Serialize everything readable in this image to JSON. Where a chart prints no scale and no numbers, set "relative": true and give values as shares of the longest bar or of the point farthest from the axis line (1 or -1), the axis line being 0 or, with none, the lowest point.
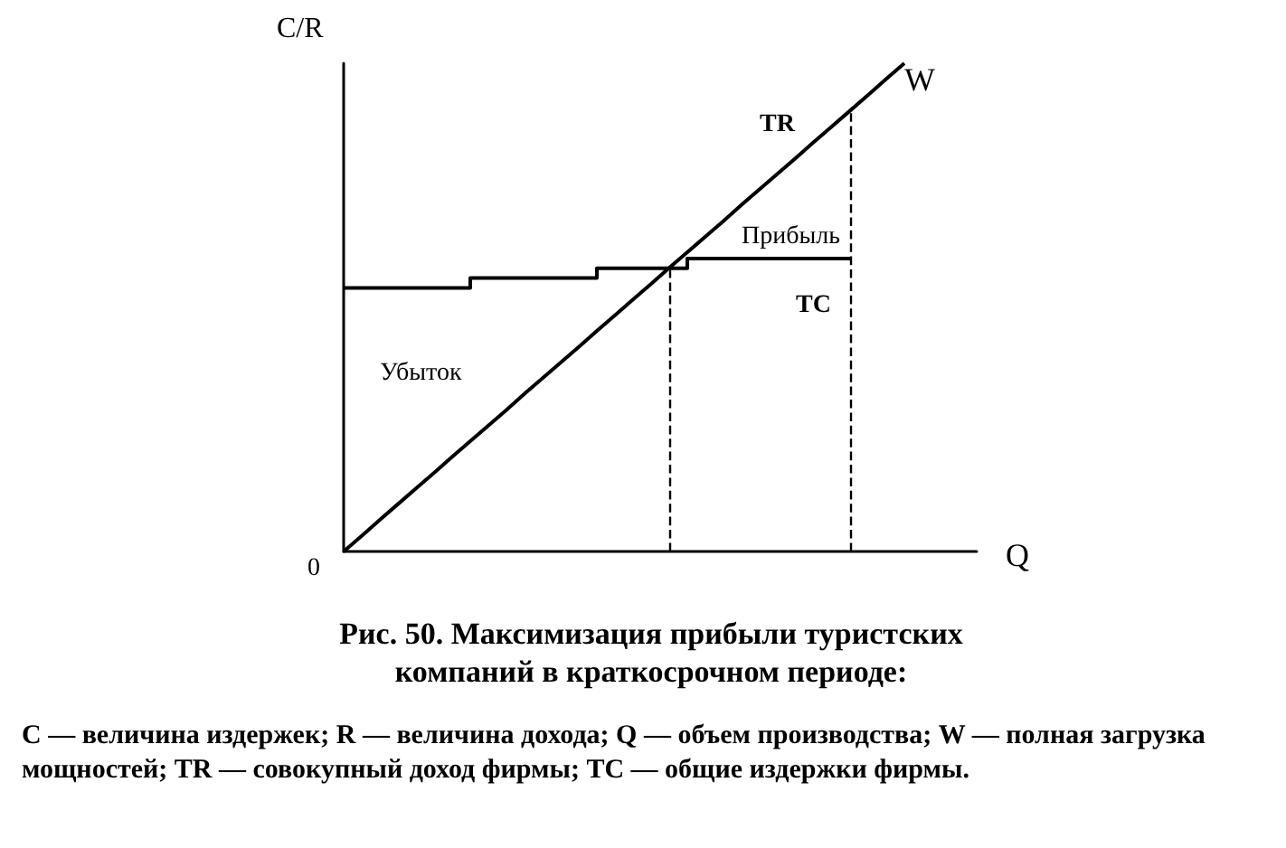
{
  "chart_data": {
    "type": "line",
    "relative": true,
    "title": "Рис. 50. Максимизация прибыли туристских компаний в краткосрочном периоде:",
    "ylabel": "C/R",
    "xlabel": "Q",
    "categories": [
      null,
      null,
      null,
      null,
      null,
      null,
      null,
      null,
      null,
      null,
      null,
      null,
      null,
      null,
      null,
      null,
      null,
      null,
      null,
      null,
      null,
      null,
      null,
      null,
      null,
      null,
      null,
      null,
      null,
      null,
      null,
      null,
      null,
      null,
      null,
      null
    ],
    "series": [
      {
        "name": "TR",
        "color": "#000000",
        "values": [
          0,
          0.032,
          0.065,
          0.097,
          0.129,
          0.161,
          0.194,
          0.226,
          0.258,
          0.29,
          0.323,
          0.355,
          0.387,
          0.419,
          0.452,
          0.484,
          0.516,
          0.548,
          0.581,
          0.613,
          0.645,
          0.677,
          0.71,
          0.742,
          0.774,
          0.806,
          0.839,
          0.871,
          0.903,
          0.935,
          0.968,
          1,
          null,
          null,
          null,
          null
        ]
      },
      {
        "name": "TC",
        "type": "step",
        "color": "#000000",
        "values": [
          0.54,
          0.54,
          0.54,
          0.54,
          0.54,
          0.54,
          0.54,
          0.54,
          0.56,
          0.56,
          0.56,
          0.56,
          0.56,
          0.56,
          0.56,
          0.58,
          0.58,
          0.58,
          0.58,
          0.58,
          0.6,
          0.6,
          0.6,
          0.6,
          0.6,
          0.6,
          0.6,
          0.6,
          0.6,
          null,
          null,
          null,
          null,
          null,
          null,
          null
        ]
      }
    ],
    "annotations": [
      "0",
      "W",
      "Прибыль",
      "Убыток",
      "C — величина издержек; R — величина дохода; Q — объем производства; W — полная загрузка мощностей; TR — совокупный доход фирмы; TC — общие издержки фирмы."
    ],
    "marker": "none",
    "grid": false,
    "legend": false
  }
}
